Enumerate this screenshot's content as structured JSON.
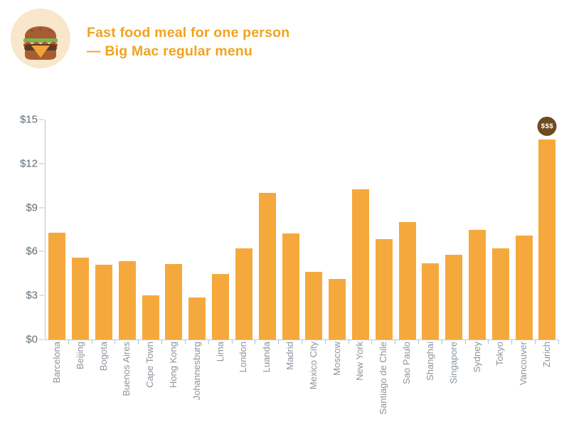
{
  "header": {
    "icon": "burger-icon",
    "title_line1": "Fast food meal for one person",
    "title_line2": "— Big Mac regular menu"
  },
  "chart_data": {
    "type": "bar",
    "title": "Fast food meal for one person — Big Mac regular menu",
    "categories": [
      "Barcelona",
      "Beijing",
      "Bogota",
      "Buenos Aires",
      "Cape Town",
      "Hong Kong",
      "Johannesburg",
      "Lima",
      "London",
      "Luanda",
      "Madrid",
      "Mexico City",
      "Moscow",
      "New York",
      "Santiago de Chile",
      "Sao Paulo",
      "Shanghai",
      "Singapore",
      "Sydney",
      "Tokyo",
      "Vancouver",
      "Zurich"
    ],
    "values": [
      7.3,
      5.6,
      5.1,
      5.35,
      3.0,
      5.15,
      2.85,
      4.45,
      6.2,
      10.0,
      7.25,
      4.6,
      4.15,
      10.25,
      6.85,
      8.0,
      5.2,
      5.8,
      7.5,
      6.2,
      7.1,
      13.65
    ],
    "xlabel": "",
    "ylabel": "",
    "ylim": [
      0,
      15
    ],
    "ytick_labels": [
      "$0",
      "$3",
      "$6",
      "$9",
      "$12",
      "$15"
    ],
    "grid": false,
    "legend": false,
    "annotation": {
      "text": "$$$",
      "category": "Zurich"
    }
  },
  "colors": {
    "bar": "#f5a93c",
    "title": "#f2a31e",
    "axis_line": "#bdc4ca",
    "ytick_text": "#5e6e7a",
    "xtick_text": "#8b949c",
    "badge_bg": "#6e4b20",
    "badge_text": "#ffffff",
    "icon_bg": "#f9e7cb",
    "bun": "#a85c33",
    "lettuce": "#7cb74e",
    "tomato": "#cd4a3b",
    "patty": "#5e3a23",
    "cheese": "#f1a43c"
  }
}
